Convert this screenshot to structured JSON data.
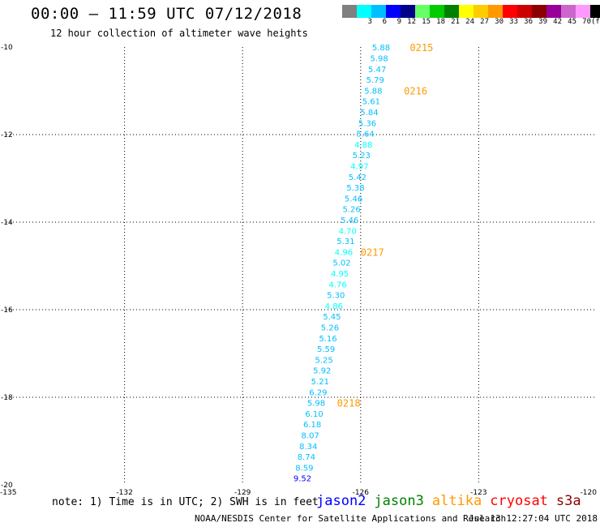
{
  "header": {
    "title": "00:00 – 11:59 UTC 07/12/2018",
    "subtitle": "12 hour collection of altimeter wave heights"
  },
  "colorbar": {
    "unit_label": "(ft)",
    "items": [
      {
        "label": "",
        "color": "#808080"
      },
      {
        "label": "3",
        "color": "#00ffff"
      },
      {
        "label": "6",
        "color": "#00bfff"
      },
      {
        "label": "9",
        "color": "#0000ff"
      },
      {
        "label": "12",
        "color": "#00008b"
      },
      {
        "label": "15",
        "color": "#66ff66"
      },
      {
        "label": "18",
        "color": "#00cc00"
      },
      {
        "label": "21",
        "color": "#008000"
      },
      {
        "label": "24",
        "color": "#ffff00"
      },
      {
        "label": "27",
        "color": "#ffcc00"
      },
      {
        "label": "30",
        "color": "#ff9900"
      },
      {
        "label": "33",
        "color": "#ff0000"
      },
      {
        "label": "36",
        "color": "#cc0000"
      },
      {
        "label": "39",
        "color": "#8b0000"
      },
      {
        "label": "42",
        "color": "#990099"
      },
      {
        "label": "45",
        "color": "#cc66cc"
      },
      {
        "label": "70",
        "color": "#ff99ff"
      },
      {
        "label": "",
        "color": "#000000"
      }
    ]
  },
  "chart_data": {
    "type": "scatter",
    "title": "00:00 – 11:59 UTC 07/12/2018",
    "subtitle": "12 hour collection of altimeter wave heights",
    "xlim": [
      -135,
      -120
    ],
    "ylim": [
      -20,
      -10
    ],
    "x_ticks": [
      {
        "value": -135,
        "label": "-135"
      },
      {
        "value": -132,
        "label": "-132"
      },
      {
        "value": -129,
        "label": "-129"
      },
      {
        "value": -126,
        "label": "-126"
      },
      {
        "value": -123,
        "label": "-123"
      },
      {
        "value": -120,
        "label": "-120"
      }
    ],
    "y_ticks": [
      {
        "value": -10,
        "label": "-10"
      },
      {
        "value": -12,
        "label": "-12"
      },
      {
        "value": -14,
        "label": "-14"
      },
      {
        "value": -16,
        "label": "-16"
      },
      {
        "value": -18,
        "label": "-18"
      },
      {
        "value": -20,
        "label": "-20"
      }
    ],
    "grid": true,
    "points": [
      {
        "lon": -125.48,
        "lat": -10.0,
        "v": "5.88",
        "color": "#00bfff"
      },
      {
        "lon": -125.53,
        "lat": -10.25,
        "v": "5.98",
        "color": "#00bfff"
      },
      {
        "lon": -125.58,
        "lat": -10.5,
        "v": "5.47",
        "color": "#00bfff"
      },
      {
        "lon": -125.63,
        "lat": -10.74,
        "v": "5.79",
        "color": "#00bfff"
      },
      {
        "lon": -125.68,
        "lat": -10.99,
        "v": "5.88",
        "color": "#00bfff"
      },
      {
        "lon": -125.73,
        "lat": -11.23,
        "v": "5.61",
        "color": "#00bfff"
      },
      {
        "lon": -125.78,
        "lat": -11.48,
        "v": "5.84",
        "color": "#00bfff"
      },
      {
        "lon": -125.83,
        "lat": -11.73,
        "v": "5.36",
        "color": "#00bfff"
      },
      {
        "lon": -125.88,
        "lat": -11.97,
        "v": "5.64",
        "color": "#00bfff"
      },
      {
        "lon": -125.93,
        "lat": -12.22,
        "v": "4.88",
        "color": "#00ffff"
      },
      {
        "lon": -125.98,
        "lat": -12.46,
        "v": "5.23",
        "color": "#00bfff"
      },
      {
        "lon": -126.03,
        "lat": -12.71,
        "v": "4.97",
        "color": "#00ffff"
      },
      {
        "lon": -126.08,
        "lat": -12.96,
        "v": "5.42",
        "color": "#00bfff"
      },
      {
        "lon": -126.13,
        "lat": -13.2,
        "v": "5.38",
        "color": "#00bfff"
      },
      {
        "lon": -126.18,
        "lat": -13.45,
        "v": "5.46",
        "color": "#00bfff"
      },
      {
        "lon": -126.23,
        "lat": -13.69,
        "v": "5.26",
        "color": "#00bfff"
      },
      {
        "lon": -126.28,
        "lat": -13.94,
        "v": "5.46",
        "color": "#00bfff"
      },
      {
        "lon": -126.33,
        "lat": -14.19,
        "v": "4.70",
        "color": "#00ffff"
      },
      {
        "lon": -126.38,
        "lat": -14.43,
        "v": "5.31",
        "color": "#00bfff"
      },
      {
        "lon": -126.43,
        "lat": -14.68,
        "v": "4.96",
        "color": "#00ffff"
      },
      {
        "lon": -126.48,
        "lat": -14.92,
        "v": "5.02",
        "color": "#00bfff"
      },
      {
        "lon": -126.53,
        "lat": -15.17,
        "v": "4.95",
        "color": "#00ffff"
      },
      {
        "lon": -126.58,
        "lat": -15.42,
        "v": "4.76",
        "color": "#00ffff"
      },
      {
        "lon": -126.63,
        "lat": -15.66,
        "v": "5.30",
        "color": "#00bfff"
      },
      {
        "lon": -126.68,
        "lat": -15.91,
        "v": "4.86",
        "color": "#00ffff"
      },
      {
        "lon": -126.73,
        "lat": -16.15,
        "v": "5.45",
        "color": "#00bfff"
      },
      {
        "lon": -126.78,
        "lat": -16.4,
        "v": "5.26",
        "color": "#00bfff"
      },
      {
        "lon": -126.83,
        "lat": -16.65,
        "v": "5.16",
        "color": "#00bfff"
      },
      {
        "lon": -126.88,
        "lat": -16.89,
        "v": "5.59",
        "color": "#00bfff"
      },
      {
        "lon": -126.93,
        "lat": -17.14,
        "v": "5.25",
        "color": "#00bfff"
      },
      {
        "lon": -126.98,
        "lat": -17.38,
        "v": "5.92",
        "color": "#00bfff"
      },
      {
        "lon": -127.03,
        "lat": -17.63,
        "v": "5.21",
        "color": "#00bfff"
      },
      {
        "lon": -127.08,
        "lat": -17.88,
        "v": "6.29",
        "color": "#00bfff"
      },
      {
        "lon": -127.13,
        "lat": -18.12,
        "v": "5.98",
        "color": "#00bfff"
      },
      {
        "lon": -127.18,
        "lat": -18.37,
        "v": "6.10",
        "color": "#00bfff"
      },
      {
        "lon": -127.23,
        "lat": -18.61,
        "v": "6.18",
        "color": "#00bfff"
      },
      {
        "lon": -127.28,
        "lat": -18.86,
        "v": "8.07",
        "color": "#00bfff"
      },
      {
        "lon": -127.33,
        "lat": -19.11,
        "v": "8.34",
        "color": "#00bfff"
      },
      {
        "lon": -127.38,
        "lat": -19.35,
        "v": "8.74",
        "color": "#00bfff"
      },
      {
        "lon": -127.43,
        "lat": -19.6,
        "v": "8.59",
        "color": "#00bfff"
      },
      {
        "lon": -127.48,
        "lat": -19.84,
        "v": "9.52",
        "color": "#0000ff"
      }
    ],
    "time_labels": [
      {
        "lon": -124.75,
        "lat": -10.0,
        "label": "0215"
      },
      {
        "lon": -124.9,
        "lat": -10.99,
        "label": "0216"
      },
      {
        "lon": -126.0,
        "lat": -14.68,
        "label": "0217"
      },
      {
        "lon": -126.6,
        "lat": -18.12,
        "label": "0218"
      }
    ],
    "time_label_color": "#ff9900"
  },
  "footer": {
    "note": "note: 1) Time is in UTC; 2) SWH is in feet",
    "satellites": [
      {
        "name": "jason2",
        "color": "#0000ff"
      },
      {
        "name": "jason3",
        "color": "#008000"
      },
      {
        "name": "altika",
        "color": "#ff9900"
      },
      {
        "name": "cryosat",
        "color": "#ff0000"
      },
      {
        "name": "s3a",
        "color": "#8b0000"
      }
    ],
    "credit": "NOAA/NESDIS Center for Satellite Applications and Research",
    "timestamp": "Jul 13 12:27:04 UTC 2018"
  }
}
